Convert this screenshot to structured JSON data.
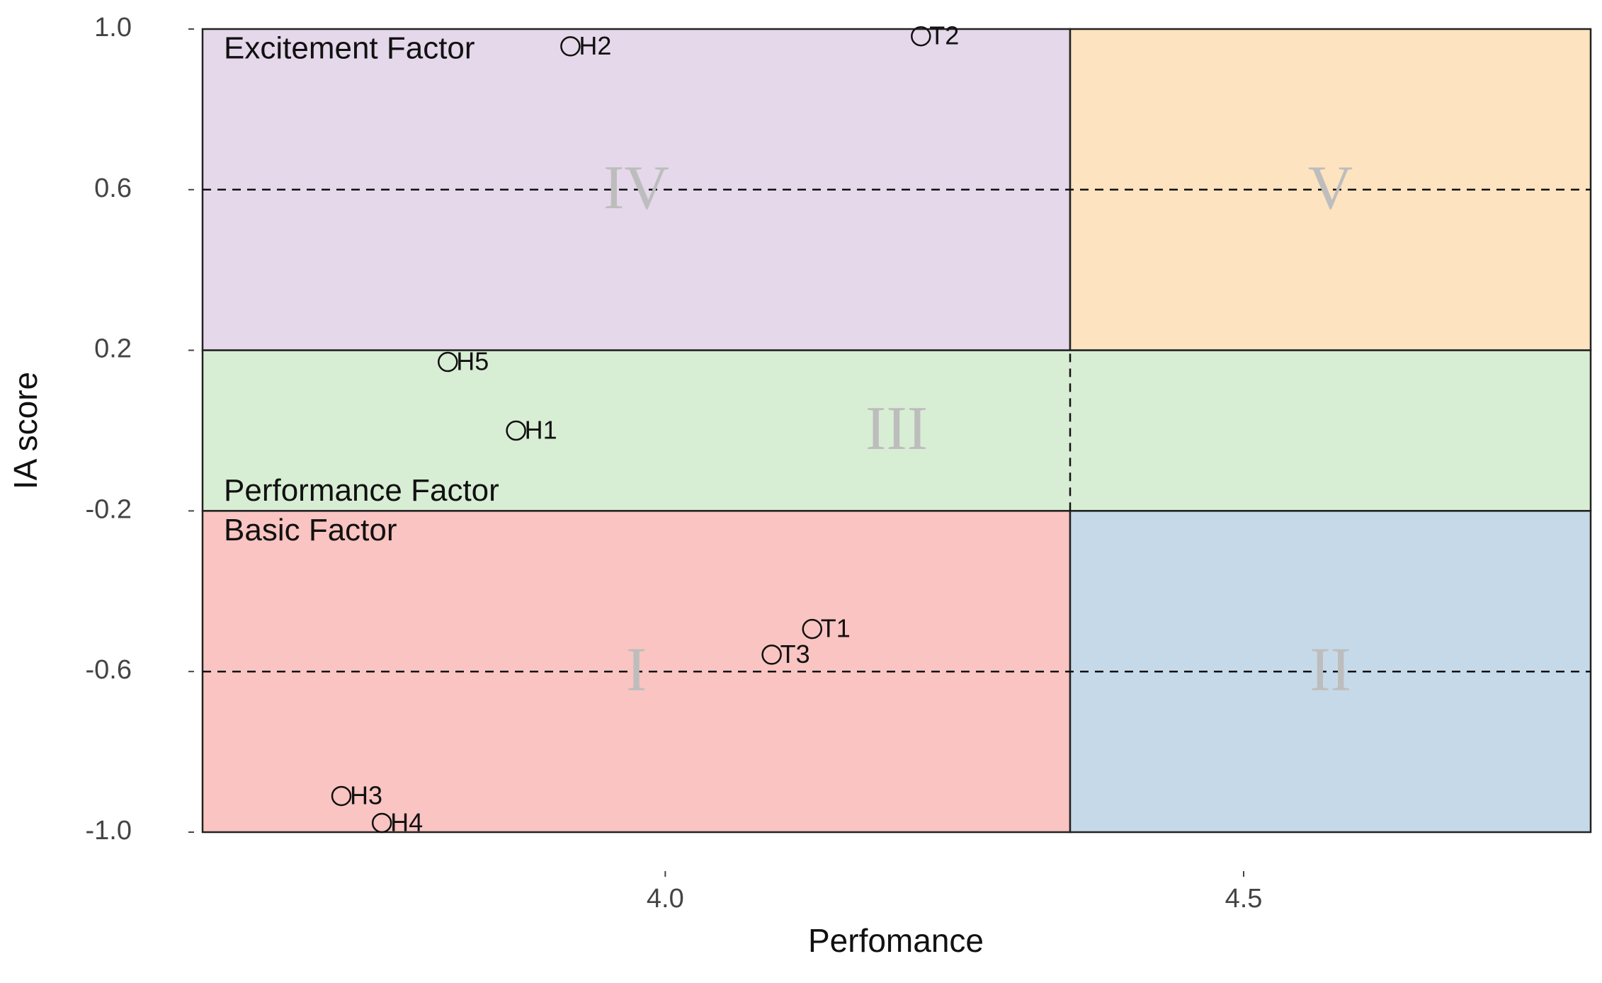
{
  "chart_data": {
    "type": "scatter",
    "x_label": "Perfomance",
    "y_label": "IA score",
    "xlim": [
      3.6,
      4.8
    ],
    "ylim": [
      -1.0,
      1.0
    ],
    "xticks": [
      {
        "value": 4.0,
        "label": "4.0"
      },
      {
        "value": 4.5,
        "label": "4.5"
      }
    ],
    "yticks": [
      {
        "value": 1.0,
        "label": "1.0"
      },
      {
        "value": 0.6,
        "label": "0.6"
      },
      {
        "value": 0.2,
        "label": "0.2"
      },
      {
        "value": -0.2,
        "label": "-0.2"
      },
      {
        "value": -0.6,
        "label": "-0.6"
      },
      {
        "value": -1.0,
        "label": "-1.0"
      }
    ],
    "regions": [
      {
        "name": "IV",
        "x": [
          3.6,
          4.35
        ],
        "y": [
          0.2,
          1.0
        ],
        "color": "#e4d8ea",
        "factor": "Excitement Factor"
      },
      {
        "name": "V",
        "x": [
          4.35,
          4.8
        ],
        "y": [
          0.2,
          1.0
        ],
        "color": "#fde3c0"
      },
      {
        "name": "III",
        "x": [
          3.6,
          4.8
        ],
        "y": [
          -0.2,
          0.2
        ],
        "color": "#d8eed4",
        "factor": "Performance Factor"
      },
      {
        "name": "I",
        "x": [
          3.6,
          4.35
        ],
        "y": [
          -1.0,
          -0.2
        ],
        "color": "#f9c4c1",
        "factor": "Basic Factor"
      },
      {
        "name": "II",
        "x": [
          4.35,
          4.8
        ],
        "y": [
          -1.0,
          -0.2
        ],
        "color": "#c6d9e8"
      }
    ],
    "hlines": [
      0.6,
      -0.6
    ],
    "vlines": [
      {
        "x": 4.35,
        "y": [
          -0.2,
          0.2
        ]
      }
    ],
    "points": {
      "labels": [
        "H2",
        "T2",
        "H5",
        "H1",
        "T1",
        "T3",
        "H3",
        "H4"
      ],
      "x": [
        3.918,
        4.221,
        3.812,
        3.871,
        4.127,
        4.092,
        3.72,
        3.755
      ],
      "values": [
        0.957,
        0.982,
        0.171,
        0.0,
        -0.494,
        -0.558,
        -0.91,
        -0.977
      ]
    }
  }
}
